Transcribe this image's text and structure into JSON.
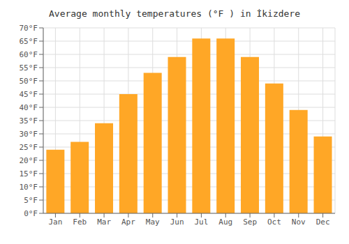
{
  "chart_data": {
    "type": "bar",
    "title": "Average monthly temperatures (°F ) in İkizdere",
    "categories": [
      "Jan",
      "Feb",
      "Mar",
      "Apr",
      "May",
      "Jun",
      "Jul",
      "Aug",
      "Sep",
      "Oct",
      "Nov",
      "Dec"
    ],
    "values": [
      24,
      27,
      34,
      45,
      53,
      59,
      66,
      66,
      59,
      49,
      39,
      29
    ],
    "color": "#FFA726",
    "ylim": [
      0,
      70
    ],
    "yticks": [
      {
        "value": 0,
        "label": "0°F"
      },
      {
        "value": 5,
        "label": "5°F"
      },
      {
        "value": 10,
        "label": "10°F"
      },
      {
        "value": 15,
        "label": "15°F"
      },
      {
        "value": 20,
        "label": "20°F"
      },
      {
        "value": 25,
        "label": "25°F"
      },
      {
        "value": 30,
        "label": "30°F"
      },
      {
        "value": 35,
        "label": "35°F"
      },
      {
        "value": 40,
        "label": "40°F"
      },
      {
        "value": 45,
        "label": "45°F"
      },
      {
        "value": 50,
        "label": "50°F"
      },
      {
        "value": 55,
        "label": "55°F"
      },
      {
        "value": 60,
        "label": "60°F"
      },
      {
        "value": 65,
        "label": "65°F"
      },
      {
        "value": 70,
        "label": "70°F"
      }
    ],
    "grid": true
  }
}
